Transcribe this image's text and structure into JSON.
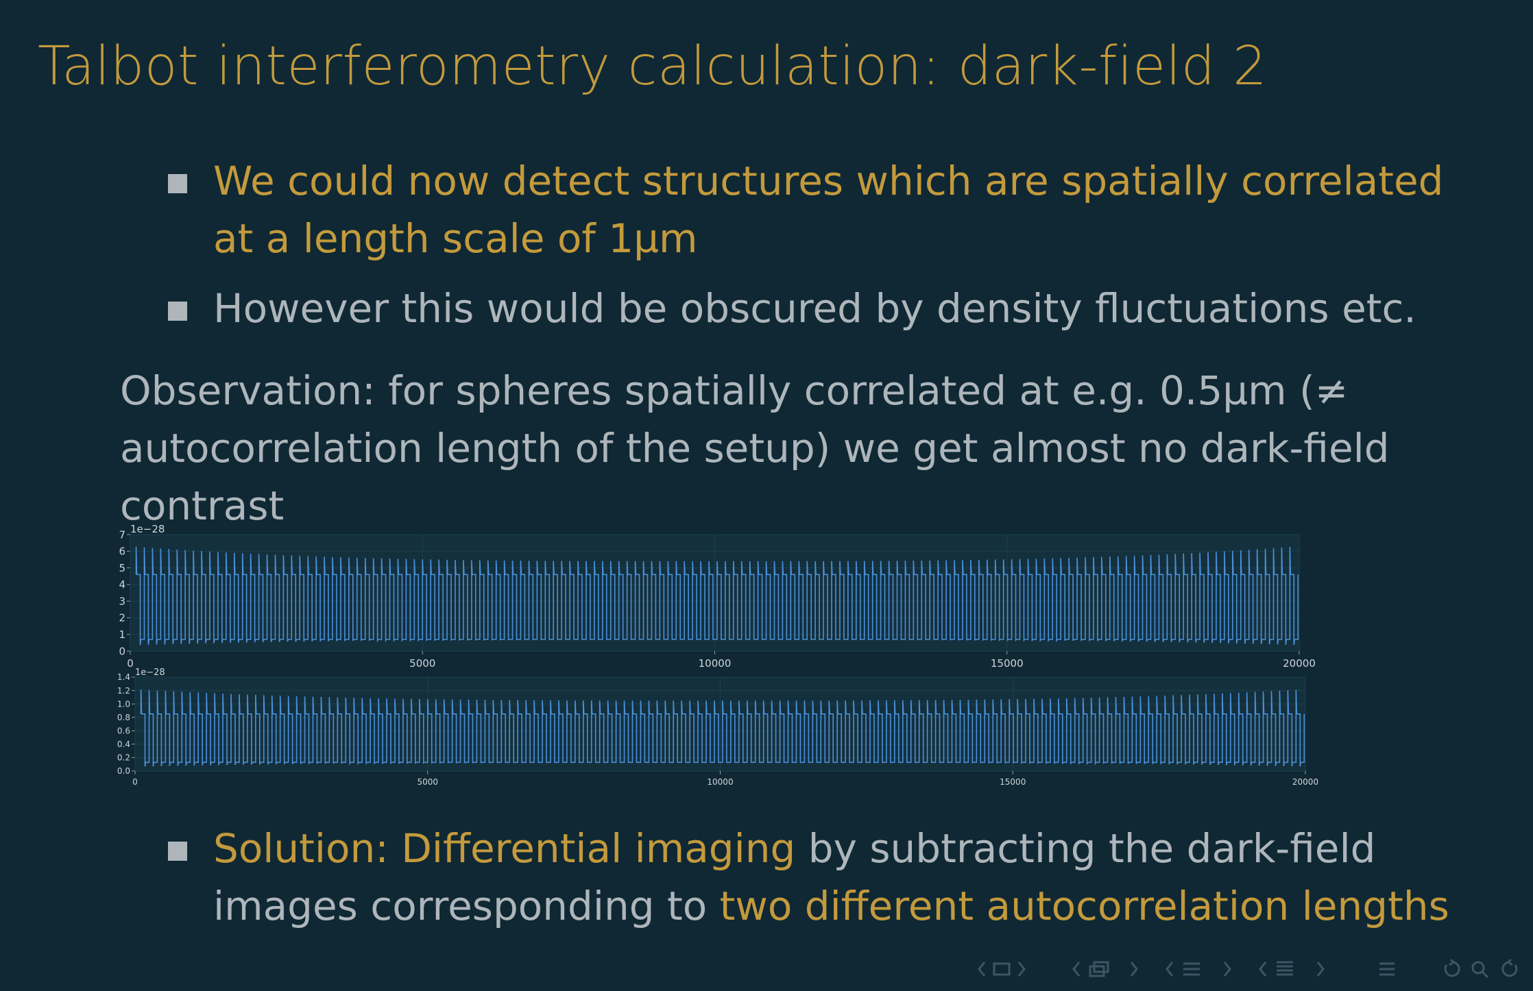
{
  "slide": {
    "title": "Talbot interferometry calculation: dark-field 2",
    "bullets_top": [
      {
        "parts": [
          {
            "text": "We could now detect structures which are spatially correlated",
            "color": "gold"
          },
          {
            "text": "at a length scale of 1µm",
            "color": "gold"
          }
        ]
      },
      {
        "parts": [
          {
            "text": "However this would be obscured by density fluctuations etc.",
            "color": "gray"
          }
        ]
      }
    ],
    "observation": {
      "line1": "Observation: for spheres spatially correlated at e.g. 0.5µm (≠",
      "line2": "autocorrelation length of the setup) we get almost no dark-field",
      "line3": "contrast"
    },
    "bullet_bottom": {
      "line1_gold": "Solution: Differential imaging",
      "line1_gray": " by subtracting the dark-field",
      "line2_gray": "images corresponding to ",
      "line2_gold": "two different autocorrelation lengths"
    }
  },
  "colors": {
    "background": "#0f2834",
    "gold": "#c49a3c",
    "gray": "#aeb6bb",
    "plot_bg": "#14303d",
    "signal": "#4a90d9"
  },
  "chart_data": [
    {
      "type": "line",
      "x_range": [
        0,
        20000
      ],
      "y_range": [
        0,
        7
      ],
      "scale_label": "1e−28",
      "yticks": [
        "0",
        "1",
        "2",
        "3",
        "4",
        "5",
        "6",
        "7"
      ],
      "xticks": [
        "0",
        "5000",
        "10000",
        "15000",
        "20000"
      ],
      "series": [
        {
          "pulse_period": 140,
          "low_level": 0.7,
          "mid_level": 4.6,
          "edge_peak": 6.3,
          "center_peak": 5.4
        }
      ]
    },
    {
      "type": "line",
      "x_range": [
        0,
        20000
      ],
      "y_range": [
        0,
        1.4
      ],
      "scale_label": "1e−28",
      "yticks": [
        "0.0",
        "0.2",
        "0.4",
        "0.6",
        "0.8",
        "1.0",
        "1.2",
        "1.4"
      ],
      "xticks": [
        "0",
        "5000",
        "10000",
        "15000",
        "20000"
      ],
      "series": [
        {
          "pulse_period": 140,
          "low_level": 0.13,
          "mid_level": 0.85,
          "edge_peak": 1.22,
          "center_peak": 1.05
        }
      ]
    }
  ],
  "navigation": {
    "icons": [
      "nav-frame-icon",
      "nav-subsection-icon",
      "nav-section-icon",
      "nav-subsubsection-icon",
      "nav-toc-icon",
      "nav-search-icon"
    ]
  }
}
